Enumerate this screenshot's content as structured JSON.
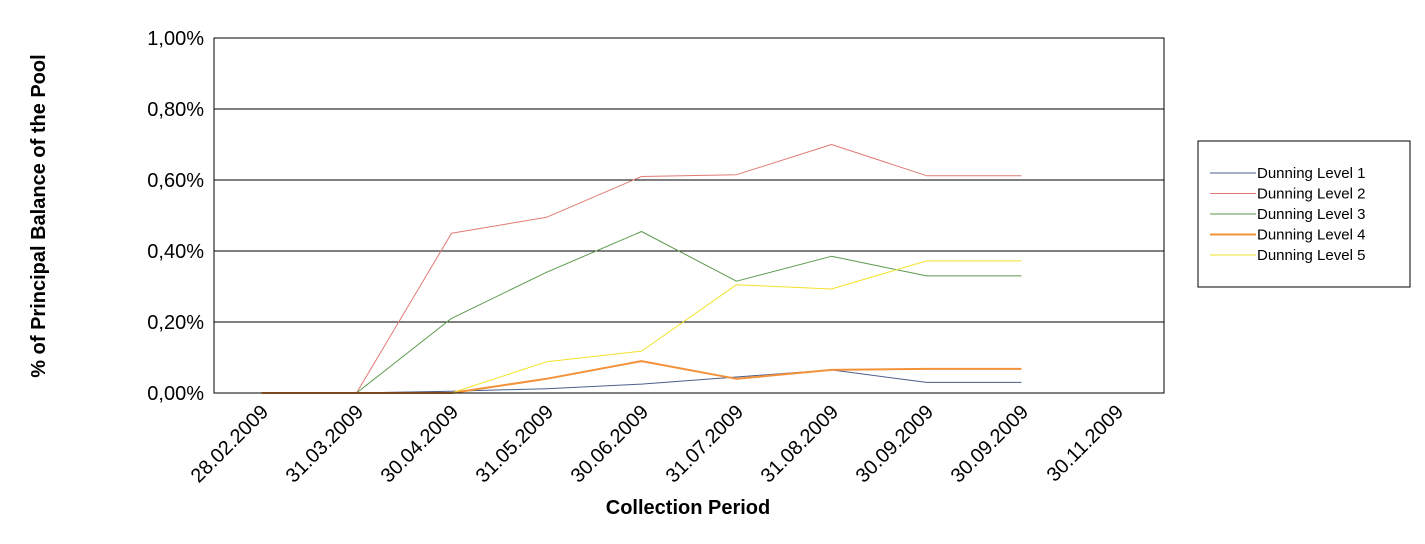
{
  "chart_data": {
    "type": "line",
    "title": "",
    "xlabel": "Collection Period",
    "ylabel": "% of Principal Balance of the Pool",
    "categories": [
      "28.02.2009",
      "31.03.2009",
      "30.04.2009",
      "31.05.2009",
      "30.06.2009",
      "31.07.2009",
      "31.08.2009",
      "30.09.2009",
      "30.09.2009",
      "30.11.2009"
    ],
    "yticks": [
      "0,00%",
      "0,20%",
      "0,40%",
      "0,60%",
      "0,80%",
      "1,00%"
    ],
    "ylim": [
      0,
      1.0
    ],
    "y_unit": "%",
    "grid": true,
    "legend_position": "right",
    "series": [
      {
        "name": "Dunning Level 1",
        "color": "#4a5e8c",
        "width": 1,
        "values": [
          0.0,
          0.0,
          0.005,
          0.012,
          0.025,
          0.045,
          0.065,
          0.03,
          0.03,
          null
        ]
      },
      {
        "name": "Dunning Level 2",
        "color": "#e07a74",
        "width": 1,
        "values": [
          0.0,
          0.0,
          0.45,
          0.495,
          0.61,
          0.615,
          0.7,
          0.612,
          0.612,
          null
        ]
      },
      {
        "name": "Dunning Level 3",
        "color": "#5b9a4c",
        "width": 1,
        "values": [
          0.0,
          0.0,
          0.21,
          0.34,
          0.455,
          0.315,
          0.385,
          0.33,
          0.33,
          null
        ]
      },
      {
        "name": "Dunning Level 4",
        "color": "#f3923a",
        "width": 2,
        "values": [
          0.0,
          0.0,
          0.0,
          0.04,
          0.09,
          0.04,
          0.065,
          0.068,
          0.068,
          null
        ]
      },
      {
        "name": "Dunning Level 5",
        "color": "#f2e22a",
        "width": 1,
        "values": [
          0.0,
          0.0,
          0.0,
          0.088,
          0.118,
          0.305,
          0.293,
          0.372,
          0.372,
          null
        ]
      }
    ]
  }
}
